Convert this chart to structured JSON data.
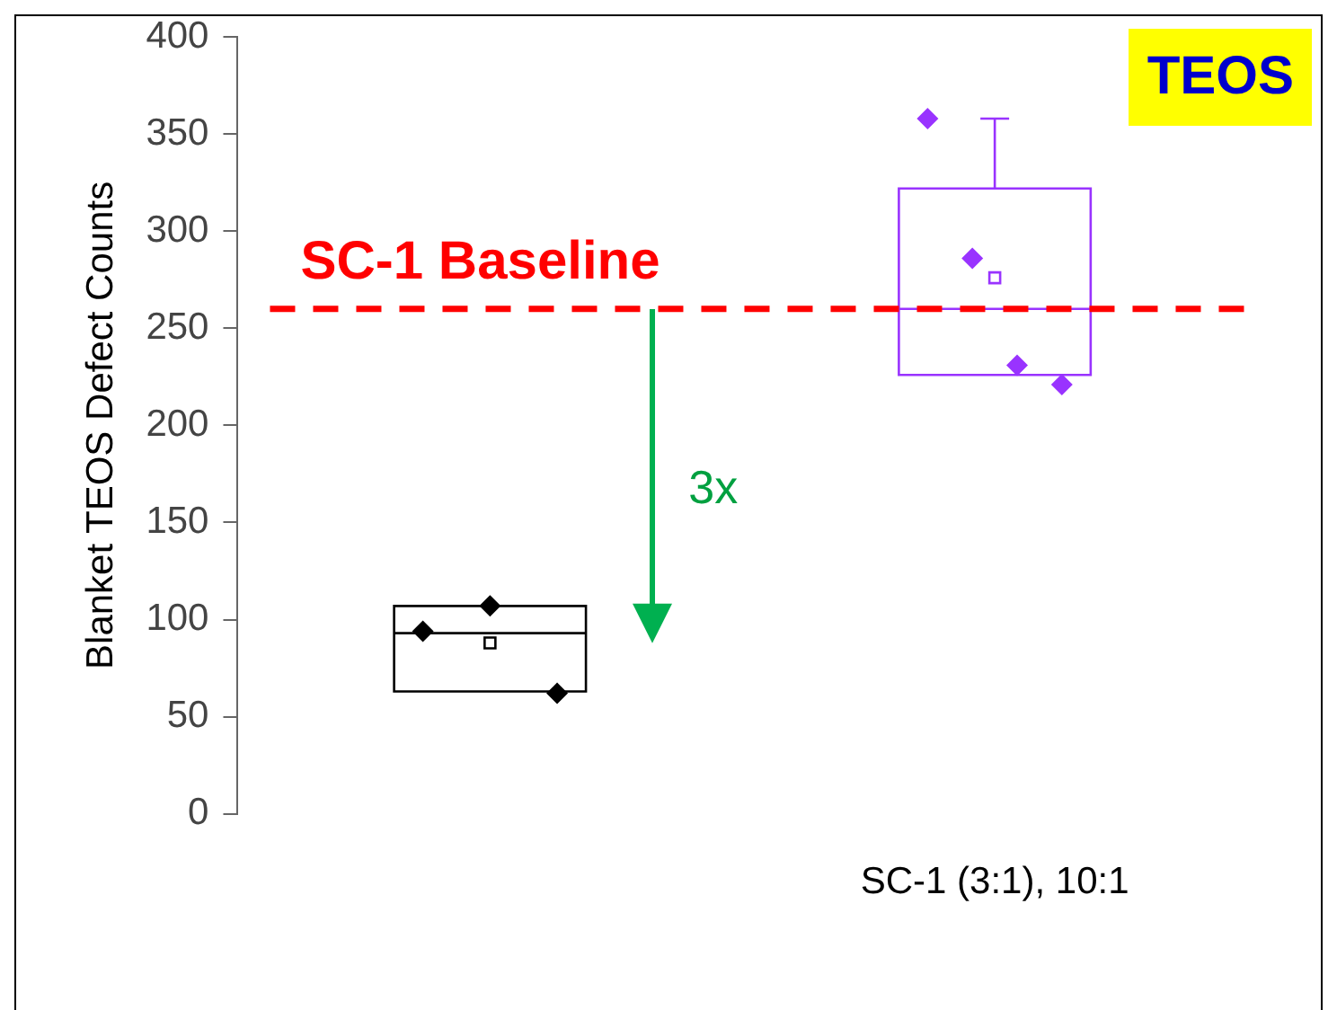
{
  "chart_data": {
    "type": "box",
    "title": "TEOS",
    "ylabel": "Blanket TEOS Defect Counts",
    "categories": [
      null,
      "SC-1 (3:1), 10:1"
    ],
    "colors": [
      "#000000",
      "#9933ff"
    ],
    "boxes": [
      {
        "low": 63,
        "q1": 63,
        "median": 93,
        "q3": 107,
        "high": 107,
        "mean": 88,
        "outliers": [
          94,
          107,
          62
        ]
      },
      {
        "low": 226,
        "q1": 226,
        "median": 260,
        "q3": 322,
        "high": 358,
        "mean": 276,
        "outliers": [
          358,
          286,
          231,
          221
        ]
      }
    ],
    "ylim": [
      0,
      400
    ],
    "yticks": [
      0,
      50,
      100,
      150,
      200,
      250,
      300,
      350,
      400
    ],
    "grid": false,
    "legend": false,
    "ref_lines": [
      {
        "axis": "y",
        "value": 260,
        "label": "SC-1 Baseline",
        "color": "#ff0000",
        "line_style": "dashed"
      }
    ],
    "annotations": [
      "3x"
    ]
  }
}
